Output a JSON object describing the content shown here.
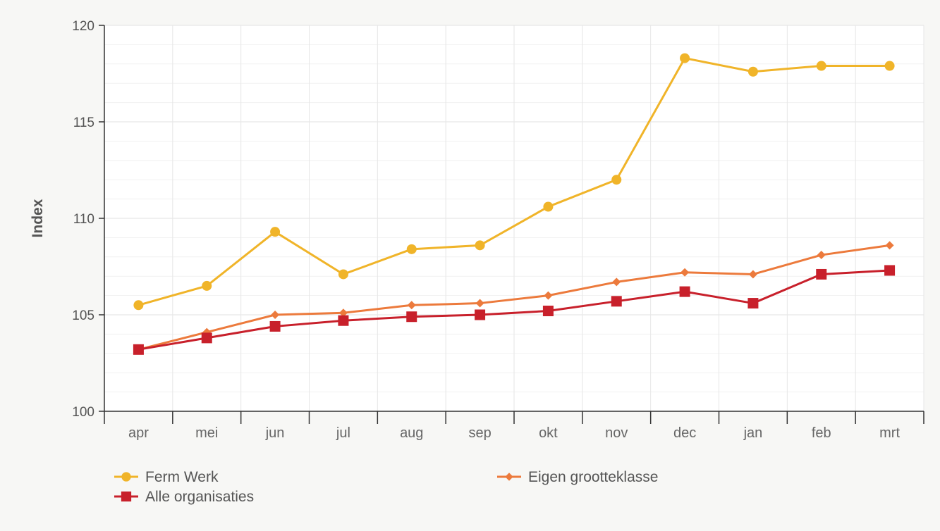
{
  "chart_data": {
    "type": "line",
    "title": "",
    "xlabel": "",
    "ylabel": "Index",
    "categories": [
      "apr",
      "mei",
      "jun",
      "jul",
      "aug",
      "sep",
      "okt",
      "nov",
      "dec",
      "jan",
      "feb",
      "mrt"
    ],
    "ylim": [
      100,
      120
    ],
    "yticks": [
      100,
      105,
      110,
      115,
      120
    ],
    "grid": true,
    "legend_position": "bottom",
    "series": [
      {
        "name": "Ferm Werk",
        "color": "#f0b429",
        "marker": "circle",
        "values": [
          105.5,
          106.5,
          109.3,
          107.1,
          108.4,
          108.6,
          110.6,
          112.0,
          118.3,
          117.6,
          117.9,
          117.9
        ]
      },
      {
        "name": "Eigen grootteklasse",
        "color": "#ec7a3c",
        "marker": "diamond",
        "values": [
          103.2,
          104.1,
          105.0,
          105.1,
          105.5,
          105.6,
          106.0,
          106.7,
          107.2,
          107.1,
          108.1,
          108.6
        ]
      },
      {
        "name": "Alle organisaties",
        "color": "#c8202b",
        "marker": "square",
        "values": [
          103.2,
          103.8,
          104.4,
          104.7,
          104.9,
          105.0,
          105.2,
          105.7,
          106.2,
          105.6,
          107.1,
          107.3
        ]
      }
    ]
  }
}
